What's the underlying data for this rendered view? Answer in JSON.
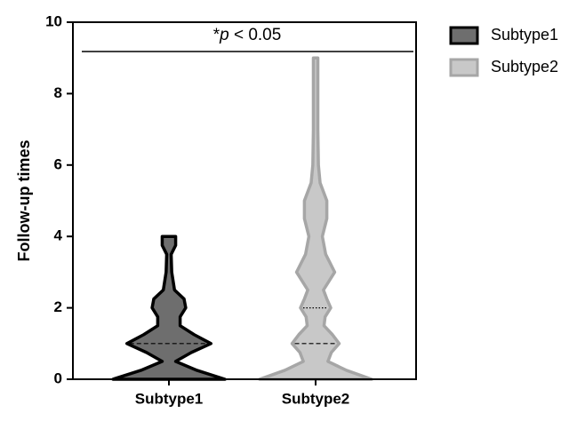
{
  "chart_data": {
    "type": "violin",
    "ylabel": "Follow-up times",
    "annotation": [
      "*",
      "p",
      " < 0.05"
    ],
    "ylim": [
      0,
      10
    ],
    "yticks": [
      0,
      2,
      4,
      6,
      8,
      10
    ],
    "categories": [
      "Subtype1",
      "Subtype2"
    ],
    "series": [
      {
        "name": "Subtype1",
        "color": "#6e6e6e",
        "edge": "#000000",
        "median": 1,
        "density_y": [
          0,
          0.25,
          0.5,
          0.75,
          1,
          1.25,
          1.5,
          1.75,
          2,
          2.25,
          2.5,
          3,
          3.5,
          3.75,
          4
        ],
        "density": [
          1,
          0.5,
          0.12,
          0.4,
          0.75,
          0.45,
          0.2,
          0.2,
          0.3,
          0.27,
          0.1,
          0.05,
          0.04,
          0.12,
          0.12
        ]
      },
      {
        "name": "Subtype2",
        "color": "#c8c8c8",
        "edge": "#a6a6a6",
        "median": 1,
        "q3": 2,
        "density_y": [
          0,
          0.25,
          0.5,
          0.75,
          1,
          1.25,
          1.5,
          1.75,
          2,
          2.25,
          2.5,
          3,
          3.5,
          4,
          4.5,
          5,
          5.5,
          6,
          7,
          8,
          9
        ],
        "density": [
          1,
          0.55,
          0.22,
          0.28,
          0.42,
          0.3,
          0.15,
          0.17,
          0.27,
          0.2,
          0.14,
          0.34,
          0.18,
          0.12,
          0.2,
          0.2,
          0.08,
          0.05,
          0.04,
          0.04,
          0.04
        ]
      }
    ]
  }
}
